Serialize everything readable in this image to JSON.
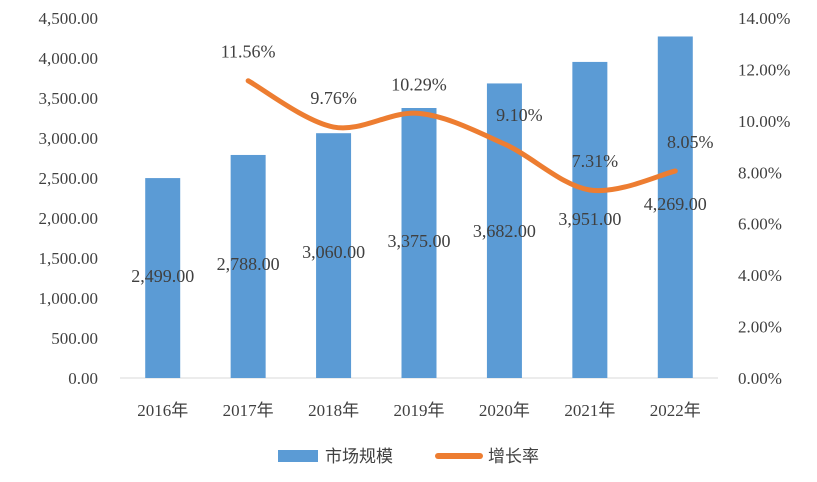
{
  "chart_data": {
    "type": "bar+line",
    "categories": [
      "2016年",
      "2017年",
      "2018年",
      "2019年",
      "2020年",
      "2021年",
      "2022年"
    ],
    "series": [
      {
        "name": "市场规模",
        "type": "bar",
        "axis": "left",
        "values": [
          2499,
          2788,
          3060,
          3375,
          3682,
          3951,
          4269
        ],
        "labels": [
          "2,499.00",
          "2,788.00",
          "3,060.00",
          "3,375.00",
          "3,682.00",
          "3,951.00",
          "4,269.00"
        ],
        "color": "#5B9BD5"
      },
      {
        "name": "增长率",
        "type": "line",
        "axis": "right",
        "values": [
          null,
          11.56,
          9.76,
          10.29,
          9.1,
          7.31,
          8.05
        ],
        "labels": [
          null,
          "11.56%",
          "9.76%",
          "10.29%",
          "9.10%",
          "7.31%",
          "8.05%"
        ],
        "color": "#ED7D31"
      }
    ],
    "y_left": {
      "min": 0,
      "max": 4500,
      "step": 500,
      "tick_labels": [
        "0.00",
        "500.00",
        "1,000.00",
        "1,500.00",
        "2,000.00",
        "2,500.00",
        "3,000.00",
        "3,500.00",
        "4,000.00",
        "4,500.00"
      ]
    },
    "y_right": {
      "min": 0,
      "max": 14,
      "step": 2,
      "tick_labels": [
        "0.00%",
        "2.00%",
        "4.00%",
        "6.00%",
        "8.00%",
        "10.00%",
        "12.00%",
        "14.00%"
      ]
    },
    "grid": false,
    "legend": {
      "position": "bottom",
      "items": [
        {
          "label": "市场规模",
          "kind": "bar",
          "color": "#5B9BD5"
        },
        {
          "label": "增长率",
          "kind": "line",
          "color": "#ED7D31"
        }
      ]
    }
  }
}
